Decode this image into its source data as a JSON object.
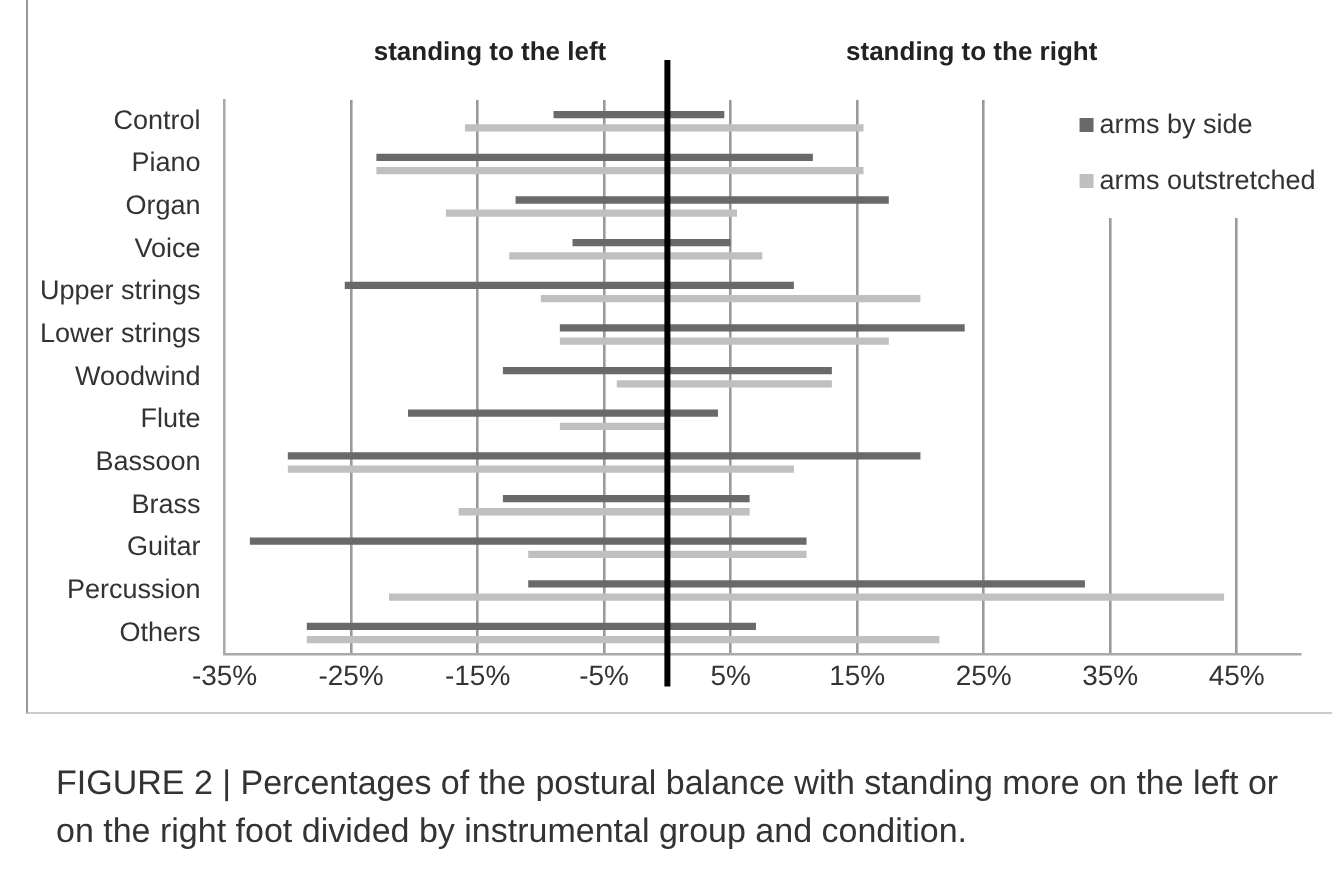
{
  "chart_data": {
    "type": "bar",
    "orientation": "horizontal",
    "categories": [
      "Control",
      "Piano",
      "Organ",
      "Voice",
      "Upper strings",
      "Lower strings",
      "Woodwind",
      "Flute",
      "Bassoon",
      "Brass",
      "Guitar",
      "Percussion",
      "Others"
    ],
    "series": [
      {
        "name": "arms by side",
        "color": "#696969",
        "base": [
          -9,
          -23,
          -12,
          -7.5,
          -25.5,
          -8.5,
          -13,
          -20.5,
          -30,
          -13,
          -33,
          -11,
          -28.5
        ],
        "values": [
          13.5,
          34.5,
          29.5,
          12.5,
          35.5,
          32,
          26,
          24.5,
          50,
          19.5,
          44,
          44,
          35.5
        ]
      },
      {
        "name": "arms outstretched",
        "color": "#c0c0c0",
        "base": [
          -16,
          -23,
          -17.5,
          -12.5,
          -10,
          -8.5,
          -4,
          -8.5,
          -30,
          -16.5,
          -11,
          -22,
          -28.5
        ],
        "values": [
          31.5,
          38.5,
          23,
          20,
          30,
          26,
          17,
          8.5,
          40,
          23,
          22,
          66,
          50
        ]
      }
    ],
    "xlim": [
      -35,
      50
    ],
    "xticks": [
      {
        "value": -35,
        "label": "-35%"
      },
      {
        "value": -25,
        "label": "-25%"
      },
      {
        "value": -15,
        "label": "-15%"
      },
      {
        "value": -5,
        "label": "-5%"
      },
      {
        "value": 5,
        "label": "5%"
      },
      {
        "value": 15,
        "label": "15%"
      },
      {
        "value": 25,
        "label": "25%"
      },
      {
        "value": 35,
        "label": "35%"
      },
      {
        "value": 45,
        "label": "45%"
      }
    ],
    "grid": "x",
    "legend": "top right",
    "ref_lines": [
      {
        "axis": "x",
        "value": 0,
        "color": "#000000"
      }
    ],
    "annotations": [
      "standing to the left",
      "standing to the right",
      "FIGURE 2 | Percentages of the postural balance with standing more on the left or on the right foot divided by instrumental group and condition."
    ]
  }
}
